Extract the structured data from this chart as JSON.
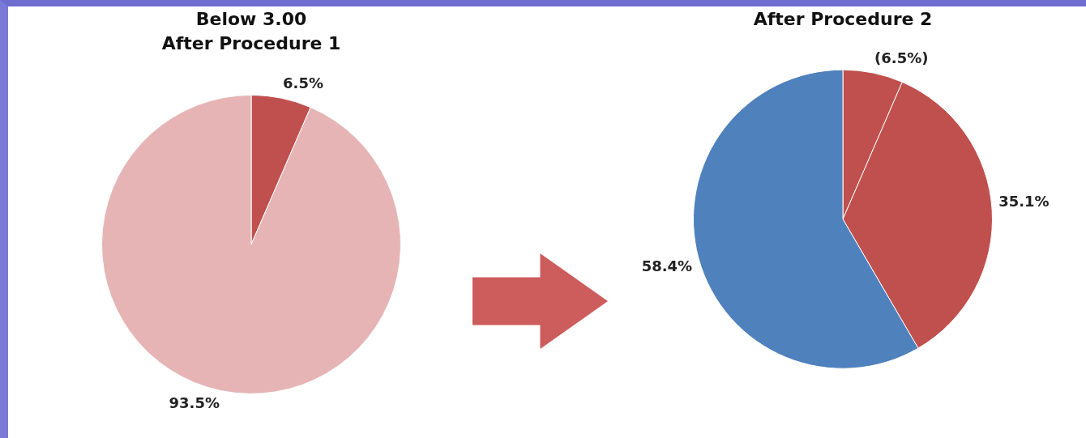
{
  "chart_data": [
    {
      "type": "pie",
      "title": "Below 3.00",
      "subtitle": "After Procedure 1",
      "categories": [
        null,
        null
      ],
      "values": [
        6.5,
        93.5
      ],
      "colors": [
        "#c0504d",
        "#e6b4b4"
      ],
      "value_labels": [
        "6.5%",
        "93.5%"
      ],
      "legend": false
    },
    {
      "type": "pie",
      "title": "After Procedure 2",
      "categories": [
        null,
        null,
        null
      ],
      "values": [
        6.5,
        35.1,
        58.4
      ],
      "colors": [
        "#c0504d",
        "#c0504d",
        "#4f81bd"
      ],
      "value_labels": [
        "(6.5%)",
        "35.1%",
        "58.4%"
      ],
      "legend": false
    }
  ]
}
